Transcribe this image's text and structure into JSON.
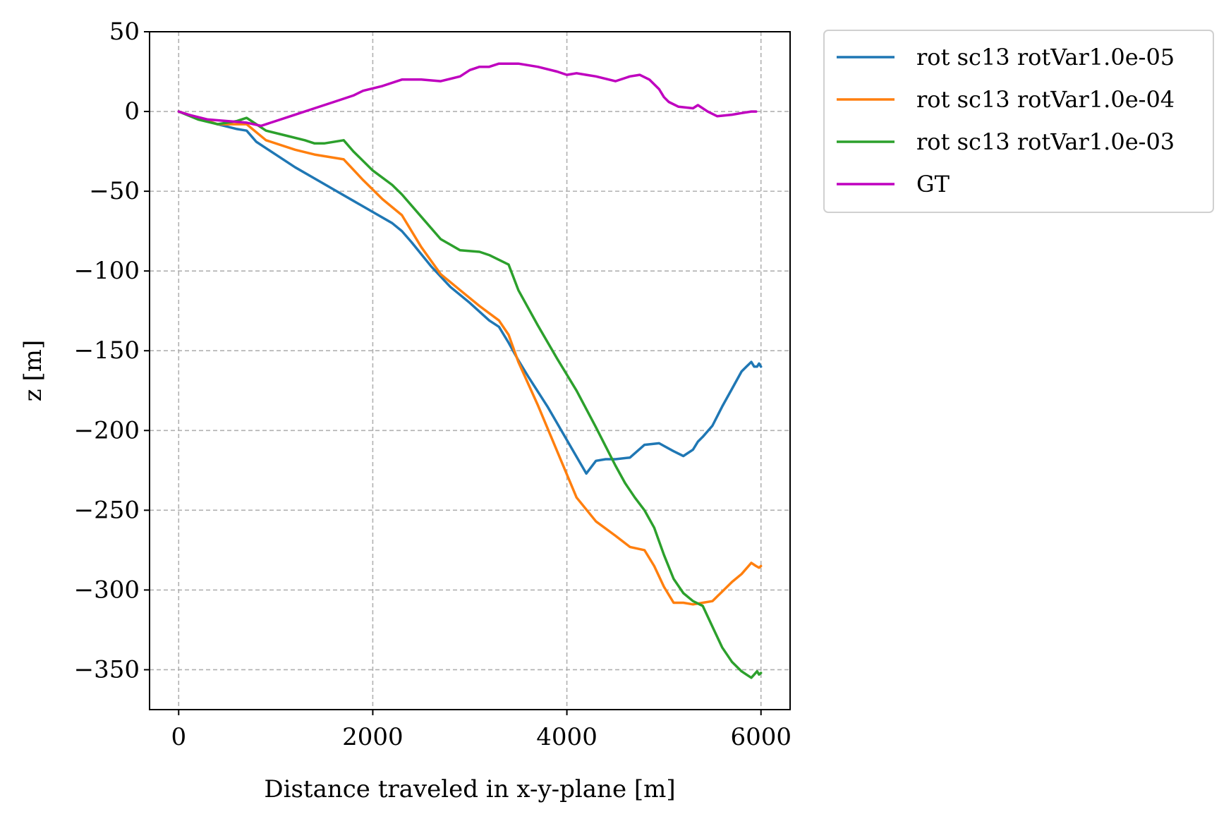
{
  "chart_data": {
    "type": "line",
    "title": "",
    "xlabel": "Distance traveled in x-y-plane [m]",
    "ylabel": "z [m]",
    "xlim": [
      -300,
      6300
    ],
    "ylim": [
      -375,
      50
    ],
    "xticks": [
      0,
      2000,
      4000,
      6000
    ],
    "xtick_labels": [
      "0",
      "2000",
      "4000",
      "6000"
    ],
    "yticks": [
      50,
      0,
      -50,
      -100,
      -150,
      -200,
      -250,
      -300,
      -350
    ],
    "ytick_labels": [
      "50",
      "0",
      "−50",
      "−100",
      "−150",
      "−200",
      "−250",
      "−300",
      "−350"
    ],
    "grid": true,
    "legend_position": "outside upper right",
    "series": [
      {
        "name": "rot sc13 rotVar1.0e-05",
        "color": "#1f77b4",
        "x": [
          0,
          200,
          400,
          600,
          700,
          800,
          1000,
          1200,
          1400,
          1600,
          1800,
          2000,
          2200,
          2300,
          2400,
          2600,
          2800,
          3000,
          3200,
          3300,
          3400,
          3500,
          3600,
          3800,
          4000,
          4200,
          4300,
          4400,
          4500,
          4650,
          4800,
          4950,
          5100,
          5200,
          5300,
          5350,
          5400,
          5500,
          5600,
          5700,
          5800,
          5850,
          5900,
          5930,
          5960,
          5980,
          6000
        ],
        "y": [
          0,
          -4,
          -8,
          -11,
          -12,
          -19,
          -27,
          -35,
          -42,
          -49,
          -56,
          -63,
          -70,
          -75,
          -82,
          -97,
          -110,
          -120,
          -131,
          -135,
          -145,
          -156,
          -166,
          -185,
          -206,
          -227,
          -219,
          -218,
          -218,
          -217,
          -209,
          -208,
          -213,
          -216,
          -212,
          -207,
          -204,
          -197,
          -185,
          -174,
          -163,
          -160,
          -157,
          -160,
          -160,
          -158,
          -160
        ]
      },
      {
        "name": "rot sc13 rotVar1.0e-04",
        "color": "#ff7f0e",
        "x": [
          0,
          200,
          400,
          600,
          700,
          900,
          1200,
          1400,
          1700,
          1900,
          2100,
          2300,
          2500,
          2700,
          2900,
          3100,
          3300,
          3400,
          3500,
          3700,
          3900,
          4100,
          4300,
          4500,
          4650,
          4800,
          4900,
          5000,
          5100,
          5200,
          5300,
          5400,
          5500,
          5600,
          5700,
          5800,
          5900,
          5950,
          5980,
          6000
        ],
        "y": [
          0,
          -4,
          -8,
          -8,
          -8,
          -18,
          -24,
          -27,
          -30,
          -43,
          -55,
          -65,
          -85,
          -102,
          -112,
          -122,
          -131,
          -140,
          -157,
          -184,
          -213,
          -242,
          -257,
          -266,
          -273,
          -275,
          -285,
          -298,
          -308,
          -308,
          -309,
          -308,
          -307,
          -301,
          -295,
          -290,
          -283,
          -285,
          -286,
          -285
        ]
      },
      {
        "name": "rot sc13 rotVar1.0e-03",
        "color": "#2ca02c",
        "x": [
          0,
          200,
          400,
          600,
          700,
          750,
          900,
          1100,
          1300,
          1400,
          1500,
          1700,
          1800,
          2000,
          2200,
          2300,
          2500,
          2700,
          2900,
          3100,
          3200,
          3400,
          3500,
          3700,
          3900,
          4100,
          4300,
          4400,
          4500,
          4600,
          4700,
          4800,
          4900,
          5000,
          5100,
          5200,
          5300,
          5400,
          5500,
          5600,
          5700,
          5800,
          5850,
          5900,
          5930,
          5960,
          5980,
          6000
        ],
        "y": [
          0,
          -5,
          -8,
          -6,
          -4,
          -6,
          -12,
          -15,
          -18,
          -20,
          -20,
          -18,
          -25,
          -37,
          -46,
          -52,
          -66,
          -80,
          -87,
          -88,
          -90,
          -96,
          -112,
          -134,
          -155,
          -175,
          -198,
          -210,
          -222,
          -233,
          -242,
          -250,
          -261,
          -278,
          -293,
          -302,
          -307,
          -310,
          -323,
          -336,
          -345,
          -351,
          -353,
          -355,
          -353,
          -351,
          -353,
          -352
        ]
      },
      {
        "name": "GT",
        "color": "#bf00bf",
        "x": [
          0,
          100,
          300,
          500,
          700,
          850,
          1000,
          1200,
          1400,
          1600,
          1800,
          1900,
          2100,
          2300,
          2500,
          2700,
          2900,
          3000,
          3100,
          3200,
          3300,
          3400,
          3500,
          3700,
          3900,
          4000,
          4100,
          4200,
          4300,
          4500,
          4650,
          4750,
          4850,
          4950,
          5000,
          5050,
          5150,
          5300,
          5350,
          5450,
          5550,
          5700,
          5800,
          5900,
          5950
        ],
        "y": [
          0,
          -2,
          -5,
          -6,
          -7,
          -9,
          -6,
          -2,
          2,
          6,
          10,
          13,
          16,
          20,
          20,
          19,
          22,
          26,
          28,
          28,
          30,
          30,
          30,
          28,
          25,
          23,
          24,
          23,
          22,
          19,
          22,
          23,
          20,
          14,
          9,
          6,
          3,
          2,
          4,
          0,
          -3,
          -2,
          -1,
          0,
          0
        ]
      }
    ]
  }
}
